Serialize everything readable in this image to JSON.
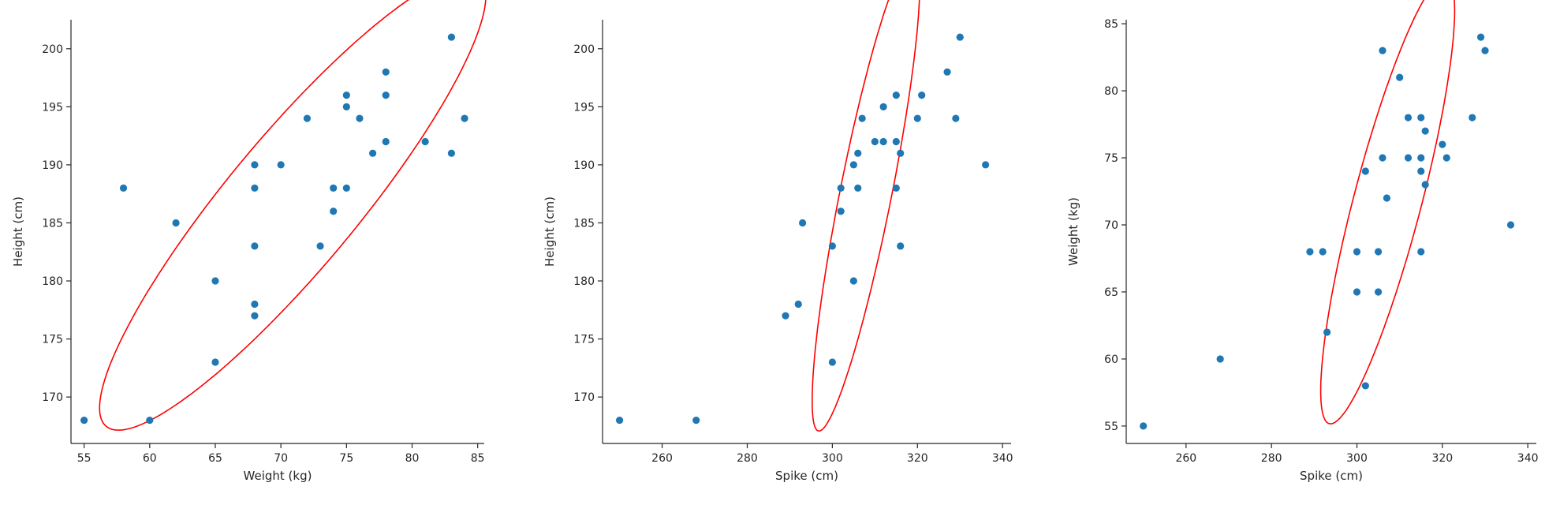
{
  "colors": {
    "points": "#1f77b4",
    "ellipse": "#ff0000",
    "axis": "#262626"
  },
  "chart_data": [
    {
      "type": "scatter",
      "xlabel": "Weight (kg)",
      "ylabel": "Height (cm)",
      "xlim": [
        54,
        85.5
      ],
      "ylim": [
        166,
        202.5
      ],
      "xticks": [
        55,
        60,
        65,
        70,
        75,
        80,
        85
      ],
      "yticks": [
        170,
        175,
        180,
        185,
        190,
        195,
        200
      ],
      "points": [
        [
          55,
          168
        ],
        [
          58,
          188
        ],
        [
          60,
          168
        ],
        [
          62,
          185
        ],
        [
          65,
          180
        ],
        [
          65,
          173
        ],
        [
          68,
          190
        ],
        [
          68,
          188
        ],
        [
          68,
          183
        ],
        [
          68,
          178
        ],
        [
          68,
          177
        ],
        [
          70,
          190
        ],
        [
          72,
          194
        ],
        [
          73,
          183
        ],
        [
          74,
          188
        ],
        [
          74,
          186
        ],
        [
          75,
          196
        ],
        [
          75,
          195
        ],
        [
          75,
          188
        ],
        [
          76,
          194
        ],
        [
          77,
          191
        ],
        [
          78,
          198
        ],
        [
          78,
          196
        ],
        [
          78,
          192
        ],
        [
          81,
          192
        ],
        [
          83,
          201
        ],
        [
          83,
          191
        ],
        [
          84,
          194
        ]
      ],
      "ellipse": {
        "cx": 70.9,
        "cy": 186.8,
        "rx": 24.0,
        "ry": 5.2,
        "angle": 54
      }
    },
    {
      "type": "scatter",
      "xlabel": "Spike (cm)",
      "ylabel": "Height (cm)",
      "xlim": [
        246,
        342
      ],
      "ylim": [
        166,
        202.5
      ],
      "xticks": [
        260,
        280,
        300,
        320,
        340
      ],
      "yticks": [
        170,
        175,
        180,
        185,
        190,
        195,
        200
      ],
      "points": [
        [
          250,
          168
        ],
        [
          268,
          168
        ],
        [
          289,
          177
        ],
        [
          292,
          178
        ],
        [
          293,
          185
        ],
        [
          300,
          183
        ],
        [
          300,
          173
        ],
        [
          302,
          188
        ],
        [
          302,
          186
        ],
        [
          305,
          190
        ],
        [
          305,
          180
        ],
        [
          306,
          191
        ],
        [
          306,
          188
        ],
        [
          307,
          194
        ],
        [
          310,
          192
        ],
        [
          312,
          195
        ],
        [
          312,
          192
        ],
        [
          315,
          196
        ],
        [
          315,
          192
        ],
        [
          315,
          188
        ],
        [
          316,
          191
        ],
        [
          316,
          183
        ],
        [
          320,
          194
        ],
        [
          321,
          196
        ],
        [
          327,
          198
        ],
        [
          329,
          194
        ],
        [
          330,
          201
        ],
        [
          336,
          190
        ]
      ],
      "ellipse": {
        "cx": 307.9,
        "cy": 187.6,
        "rx": 23.5,
        "ry": 5.4,
        "angle": 60
      }
    },
    {
      "type": "scatter",
      "xlabel": "Spike (cm)",
      "ylabel": "Weight (kg)",
      "xlim": [
        246,
        342
      ],
      "ylim": [
        53.7,
        85.3
      ],
      "xticks": [
        260,
        280,
        300,
        320,
        340
      ],
      "yticks": [
        55,
        60,
        65,
        70,
        75,
        80,
        85
      ],
      "points": [
        [
          250,
          55
        ],
        [
          268,
          60
        ],
        [
          289,
          68
        ],
        [
          292,
          68
        ],
        [
          293,
          62
        ],
        [
          300,
          68
        ],
        [
          300,
          65
        ],
        [
          302,
          74
        ],
        [
          302,
          58
        ],
        [
          305,
          68
        ],
        [
          305,
          65
        ],
        [
          306,
          83
        ],
        [
          306,
          75
        ],
        [
          307,
          72
        ],
        [
          310,
          81
        ],
        [
          312,
          78
        ],
        [
          312,
          75
        ],
        [
          315,
          78
        ],
        [
          315,
          75
        ],
        [
          315,
          74
        ],
        [
          315,
          68
        ],
        [
          316,
          77
        ],
        [
          316,
          73
        ],
        [
          320,
          76
        ],
        [
          321,
          75
        ],
        [
          327,
          78
        ],
        [
          329,
          84
        ],
        [
          330,
          83
        ],
        [
          336,
          70
        ]
      ],
      "ellipse": {
        "cx": 307.2,
        "cy": 71.8,
        "rx": 22.0,
        "ry": 6.2,
        "angle": 47
      }
    }
  ]
}
